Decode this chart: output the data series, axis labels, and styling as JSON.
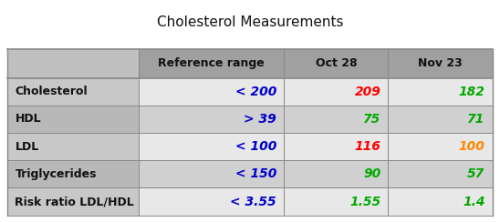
{
  "title": "Cholesterol Measurements",
  "col_headers": [
    "",
    "Reference range",
    "Oct 28",
    "Nov 23"
  ],
  "rows": [
    {
      "label": "Cholesterol",
      "ref": "< 200",
      "oct28": "209",
      "nov23": "182",
      "ref_color": "#0000cc",
      "oct28_color": "#ff0000",
      "nov23_color": "#00aa00"
    },
    {
      "label": "HDL",
      "ref": "> 39",
      "oct28": "75",
      "nov23": "71",
      "ref_color": "#0000cc",
      "oct28_color": "#00aa00",
      "nov23_color": "#00aa00"
    },
    {
      "label": "LDL",
      "ref": "< 100",
      "oct28": "116",
      "nov23": "100",
      "ref_color": "#0000cc",
      "oct28_color": "#ff0000",
      "nov23_color": "#ff8800"
    },
    {
      "label": "Triglycerides",
      "ref": "< 150",
      "oct28": "90",
      "nov23": "57",
      "ref_color": "#0000cc",
      "oct28_color": "#00aa00",
      "nov23_color": "#00aa00"
    },
    {
      "label": "Risk ratio LDL/HDL",
      "ref": "< 3.55",
      "oct28": "1.55",
      "nov23": "1.4",
      "ref_color": "#0000cc",
      "oct28_color": "#00aa00",
      "nov23_color": "#00aa00"
    }
  ],
  "header_bg": "#a0a0a0",
  "label_col_bg": "#c0c0c0",
  "row_bg_light": "#e8e8e8",
  "row_bg_dark": "#d0d0d0",
  "fig_bg": "#ffffff",
  "title_fontsize": 11,
  "header_fontsize": 9,
  "cell_fontsize": 10,
  "label_fontsize": 9
}
